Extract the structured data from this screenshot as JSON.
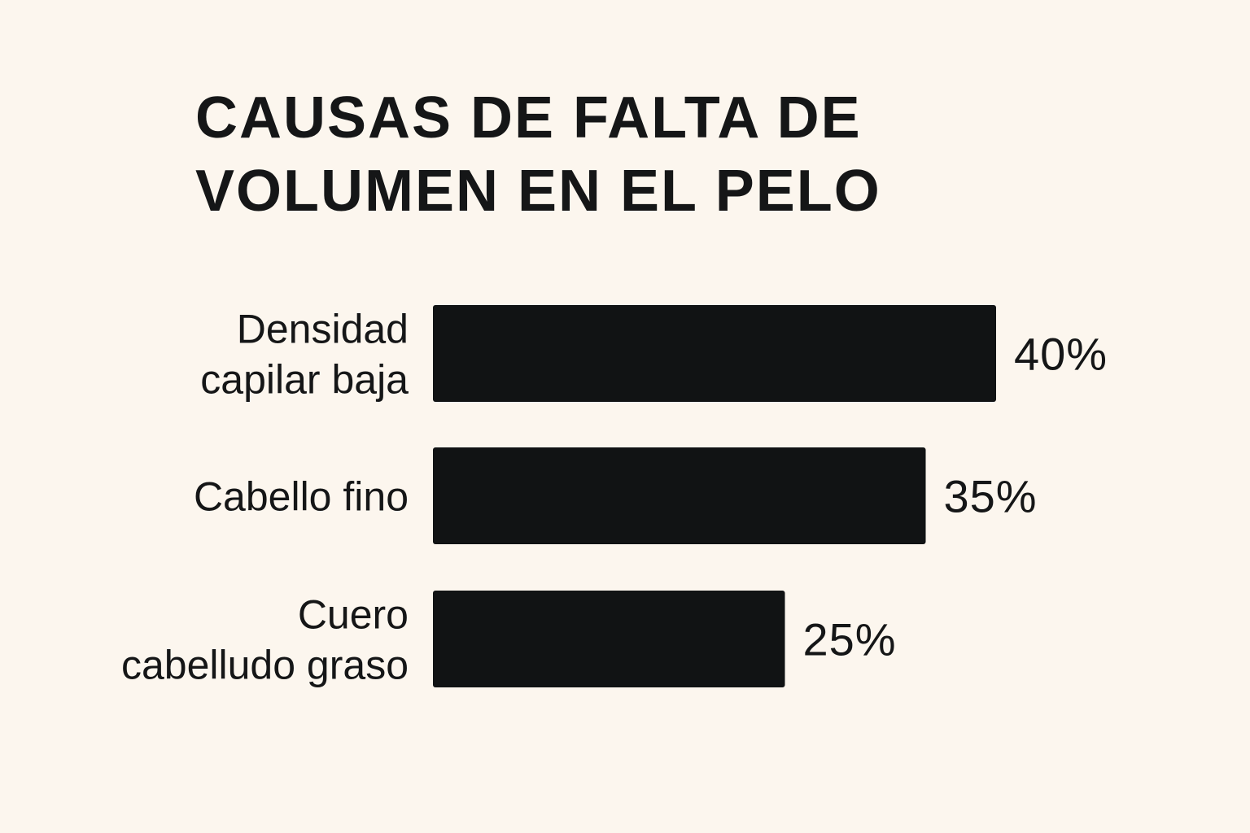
{
  "chart_data": {
    "type": "bar",
    "orientation": "horizontal",
    "title_lines": [
      "CAUSAS DE FALTA DE",
      "VOLUMEN EN EL PELO"
    ],
    "categories": [
      [
        "Densidad",
        "capilar baja"
      ],
      [
        "Cabello fino"
      ],
      [
        "Cuero",
        "cabelludo graso"
      ]
    ],
    "values": [
      40,
      35,
      25
    ],
    "value_labels": [
      "40%",
      "35%",
      "25%"
    ],
    "xlim": [
      0,
      40
    ],
    "grid": false,
    "bar_color": "#111314",
    "background_color": "#fcf6ee"
  }
}
